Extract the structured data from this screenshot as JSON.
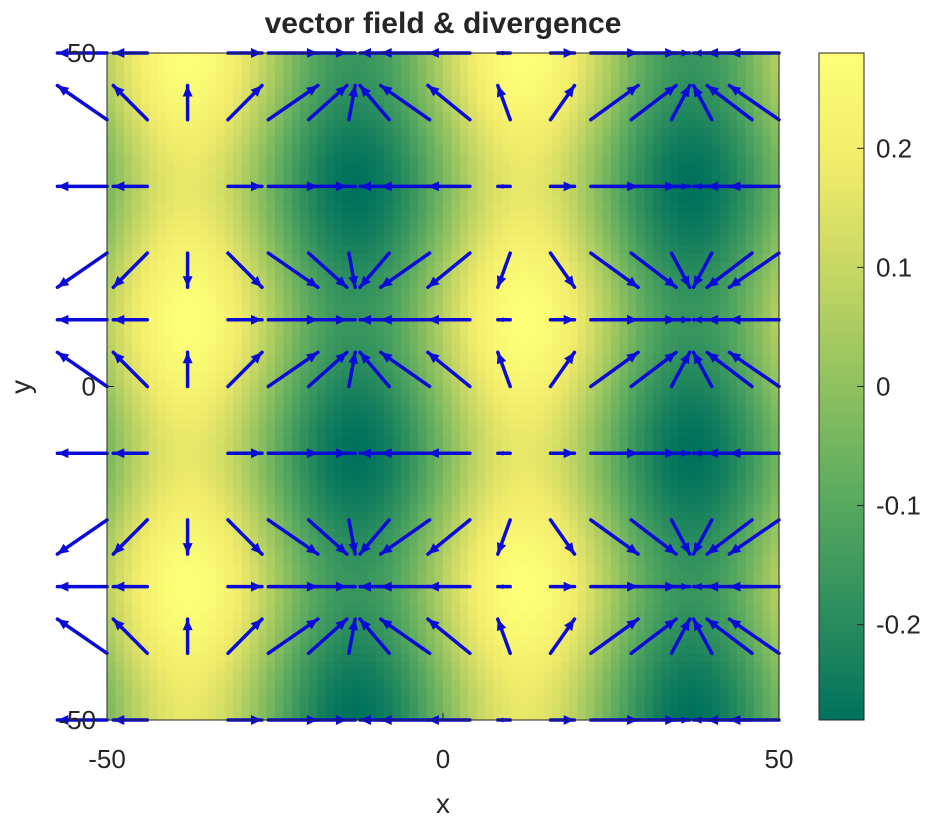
{
  "chart_data": {
    "type": "heatmap",
    "title": "vector field & divergence",
    "xlabel": "x",
    "ylabel": "y",
    "xlim": [
      -50,
      50
    ],
    "ylim": [
      -50,
      50
    ],
    "x_ticks": [
      -50,
      0,
      50
    ],
    "y_ticks": [
      -50,
      0,
      50
    ],
    "x_tick_labels": [
      "-50",
      "0",
      "50"
    ],
    "y_tick_labels": [
      "-50",
      "0",
      "50"
    ],
    "field": {
      "description_formula": "divergence = 0.28*(0.8*cos(2*pi*(x-12)/50) + 0.2*cos(2*pi*(y-10)/40)) approximately; vectors point along -grad of potential",
      "x_period": 50,
      "x_center": 12,
      "y_period": 40,
      "y_center": 10
    },
    "quiver": {
      "grid_x": [
        -50,
        -44,
        -38,
        -32,
        -26,
        -20,
        -14,
        -8,
        -2,
        4,
        10,
        16,
        22,
        28,
        34,
        40,
        46,
        50
      ],
      "grid_y": [
        -50,
        -40,
        -30,
        -20,
        -10,
        0,
        10,
        20,
        30,
        40,
        50
      ],
      "color": "#0b0bd6"
    },
    "colorbar": {
      "range": [
        -0.28,
        0.28
      ],
      "ticks": [
        -0.2,
        -0.1,
        0,
        0.1,
        0.2
      ],
      "tick_labels": [
        "-0.2",
        "-0.1",
        "0",
        "0.1",
        "0.2"
      ],
      "colormap": [
        "#00725c",
        "#2e8f5e",
        "#5aaa5f",
        "#8fc15f",
        "#c4d663",
        "#f1ec6b",
        "#fcff77"
      ]
    },
    "grid": false
  }
}
